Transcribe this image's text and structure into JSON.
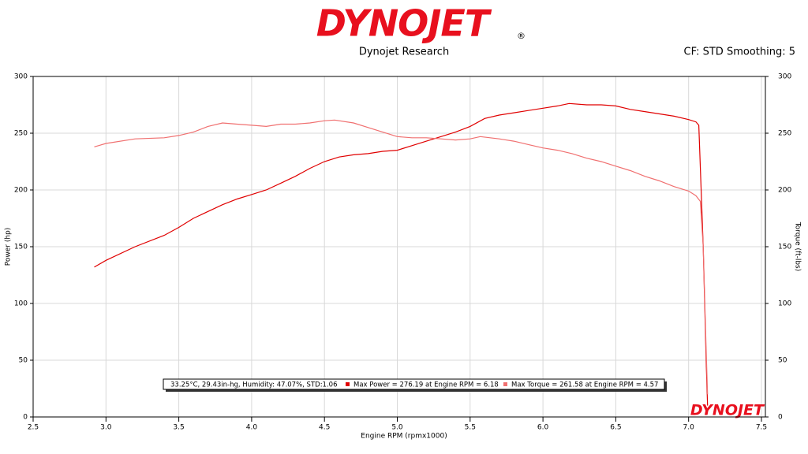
{
  "header": {
    "logo": "DYNOJET",
    "mark": "®"
  },
  "watermark": "DYNOJET",
  "chart_data": {
    "type": "line",
    "title": "Dynojet Research",
    "subtitle": "CF: STD Smoothing: 5",
    "x_label": "Engine RPM (rpmx1000)",
    "y_label": "Power (hp)",
    "y2_label": "Torque (ft-lbs)",
    "annotation": "33.25°C, 29.43in-hg, Humidity: 47.07%, STD:1.06",
    "xlim": [
      2.5,
      7.5
    ],
    "xticks": [
      {
        "value": 2.5,
        "label": "2.5"
      },
      {
        "value": 3,
        "label": "3.0"
      },
      {
        "value": 3.5,
        "label": "3.5"
      },
      {
        "value": 4,
        "label": "4.0"
      },
      {
        "value": 4.5,
        "label": "4.5"
      },
      {
        "value": 5,
        "label": "5.0"
      },
      {
        "value": 5.5,
        "label": "5.5"
      },
      {
        "value": 6,
        "label": "6.0"
      },
      {
        "value": 6.5,
        "label": "6.5"
      },
      {
        "value": 7,
        "label": "7.0"
      },
      {
        "value": 7.5,
        "label": "7.5"
      }
    ],
    "ylim": [
      0,
      300
    ],
    "yticks": [
      0,
      50,
      100,
      150,
      200,
      250,
      300
    ],
    "y2lim": [
      0,
      300
    ],
    "y2ticks": [
      0,
      50,
      100,
      150,
      200,
      250,
      300
    ],
    "grid": true,
    "series": [
      {
        "name": "Max Power = 276.19 at Engine RPM = 6.18",
        "color": "#e00000",
        "axis": "y",
        "x": [
          2.92,
          3.0,
          3.2,
          3.4,
          3.5,
          3.6,
          3.8,
          3.9,
          4.0,
          4.1,
          4.2,
          4.3,
          4.4,
          4.5,
          4.6,
          4.7,
          4.8,
          4.9,
          5.0,
          5.1,
          5.2,
          5.3,
          5.4,
          5.5,
          5.6,
          5.7,
          5.8,
          5.9,
          6.0,
          6.1,
          6.18,
          6.3,
          6.4,
          6.5,
          6.6,
          6.7,
          6.8,
          6.9,
          7.0,
          7.05,
          7.07,
          7.1,
          7.12,
          7.13
        ],
        "values": [
          132,
          138,
          150,
          160,
          167,
          175,
          187,
          192,
          196,
          200,
          206,
          212,
          219,
          225,
          229,
          231,
          232,
          234,
          235,
          239,
          243,
          247,
          251,
          256,
          263,
          266,
          268,
          270,
          272,
          274,
          276.19,
          275,
          275,
          274,
          271,
          269,
          267,
          265,
          262,
          260,
          257,
          150,
          50,
          10
        ]
      },
      {
        "name": "Max Torque = 261.58 at Engine RPM = 4.57",
        "color": "#f07070",
        "axis": "y2",
        "x": [
          2.92,
          3.0,
          3.2,
          3.4,
          3.5,
          3.6,
          3.7,
          3.8,
          3.9,
          4.0,
          4.1,
          4.2,
          4.3,
          4.4,
          4.5,
          4.57,
          4.7,
          4.8,
          4.9,
          5.0,
          5.1,
          5.2,
          5.3,
          5.4,
          5.5,
          5.57,
          5.7,
          5.8,
          5.9,
          6.0,
          6.1,
          6.2,
          6.3,
          6.4,
          6.5,
          6.6,
          6.7,
          6.8,
          6.9,
          7.0,
          7.05,
          7.08,
          7.1,
          7.12,
          7.13
        ],
        "values": [
          238,
          241,
          245,
          246,
          248,
          251,
          256,
          259,
          258,
          257,
          256,
          258,
          258,
          259,
          261,
          261.58,
          259,
          255,
          251,
          247,
          246,
          246,
          245,
          244,
          245,
          247,
          245,
          243,
          240,
          237,
          235,
          232,
          228,
          225,
          221,
          217,
          212,
          208,
          203,
          199,
          195,
          190,
          150,
          60,
          20
        ]
      }
    ]
  }
}
